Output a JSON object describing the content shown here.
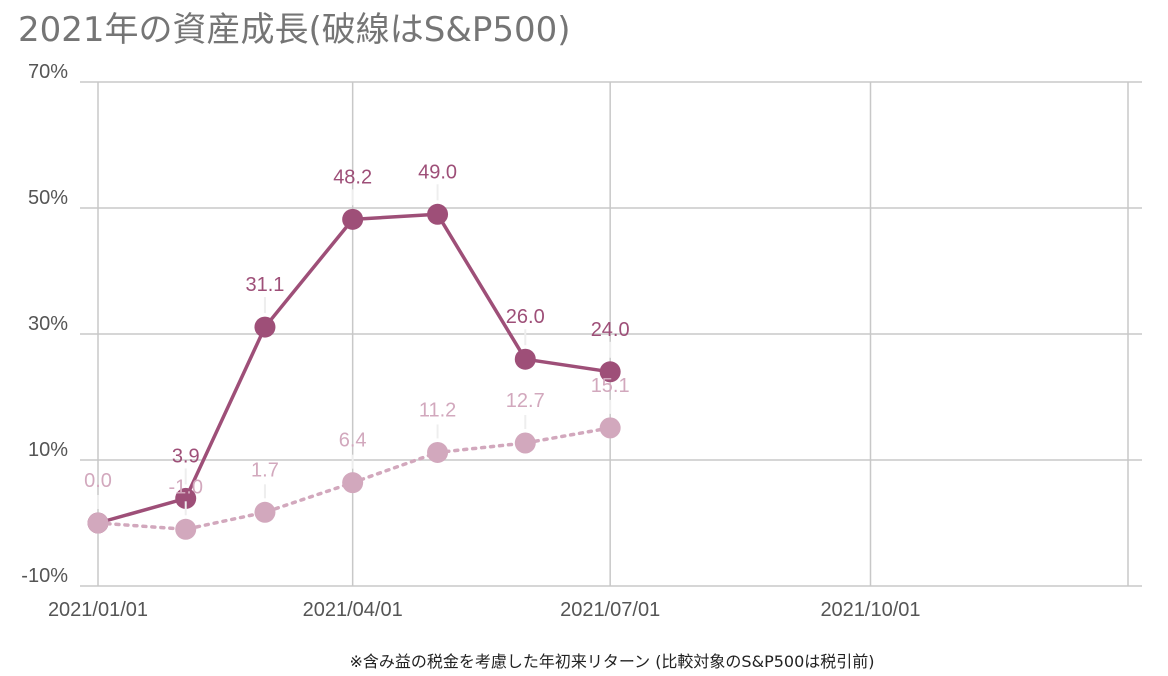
{
  "title": "2021年の資産成長(破線はS&P500)",
  "caption": "※含み益の税金を考慮した年初来リターン (比較対象のS&P500は税引前)",
  "chart_data": {
    "type": "line",
    "title": "2021年の資産成長(破線はS&P500)",
    "x_ticks": [
      "2021/01/01",
      "2021/04/01",
      "2021/07/01",
      "2021/10/01"
    ],
    "x_range": [
      "2021/01/01",
      "2021/12/31"
    ],
    "y_ticks": [
      "70%",
      "50%",
      "30%",
      "10%",
      "-10%"
    ],
    "y_tick_values": [
      70,
      50,
      30,
      10,
      -10
    ],
    "ylim": [
      -10,
      70
    ],
    "grid": true,
    "series": [
      {
        "color": "#9e4f78",
        "style": "solid",
        "x": [
          "2021/01/01",
          "2021/02/01",
          "2021/03/01",
          "2021/04/01",
          "2021/05/01",
          "2021/06/01",
          "2021/07/01"
        ],
        "values": [
          0.0,
          3.9,
          31.1,
          48.2,
          49.0,
          26.0,
          24.0
        ],
        "labels": [
          "3.9",
          "31.1",
          "48.2",
          "49.0",
          "26.0",
          "24.0"
        ]
      },
      {
        "color": "#d2a8bd",
        "style": "dotted",
        "x": [
          "2021/01/01",
          "2021/02/01",
          "2021/03/01",
          "2021/04/01",
          "2021/05/01",
          "2021/06/01",
          "2021/07/01"
        ],
        "values": [
          0.0,
          -1.0,
          1.7,
          6.4,
          11.2,
          12.7,
          15.1
        ],
        "labels": [
          "0.0",
          "-1.0",
          "1.7",
          "6.4",
          "11.2",
          "12.7",
          "15.1"
        ]
      }
    ]
  }
}
